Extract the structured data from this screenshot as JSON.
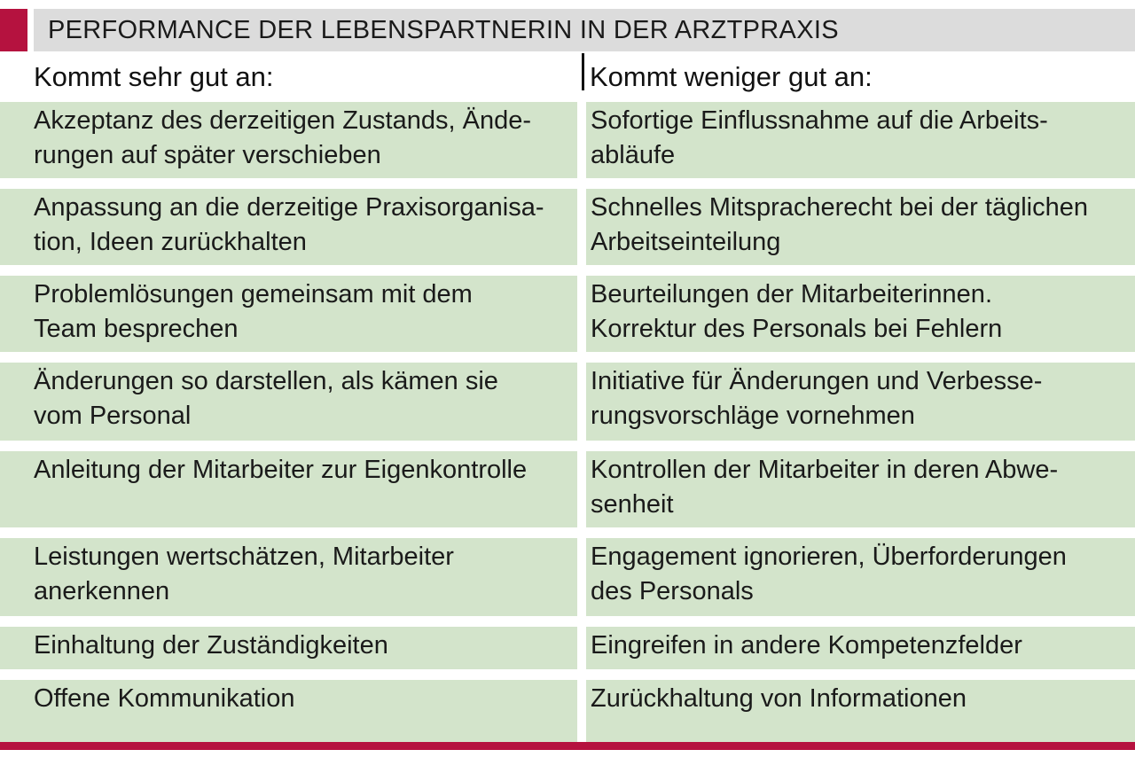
{
  "title": "PERFORMANCE DER LEBENSPARTNERIN IN DER ARZTPRAXIS",
  "columns": {
    "left_header": "Kommt sehr gut an:",
    "right_header": "Kommt weniger gut an:"
  },
  "rows": [
    {
      "left": "Akzeptanz des derzeitigen Zustands, Ände-\nrungen auf später verschieben",
      "right": "Sofortige Einflussnahme auf die Arbeits-\nabläufe"
    },
    {
      "left": "Anpassung an die derzeitige Praxisorganisa-\ntion, Ideen zurückhalten",
      "right": "Schnelles Mitspracherecht bei der täglichen\nArbeitseinteilung"
    },
    {
      "left": "Problemlösungen gemeinsam mit dem\nTeam besprechen",
      "right": "Beurteilungen der Mitarbeiterinnen.\nKorrektur des Personals bei Fehlern"
    },
    {
      "left": "Änderungen so darstellen, als kämen sie\nvom Personal",
      "right": "Initiative für Änderungen und Verbesse-\nrungsvorschläge vornehmen"
    },
    {
      "left": "Anleitung der Mitarbeiter zur Eigenkontrolle",
      "right": "Kontrollen der Mitarbeiter in deren Abwe-\nsenheit"
    },
    {
      "left": "Leistungen wertschätzen, Mitarbeiter\nanerkennen",
      "right": "Engagement ignorieren, Überforderungen\ndes Personals"
    },
    {
      "left": "Einhaltung der Zuständigkeiten",
      "right": "Eingreifen in andere Kompetenzfelder"
    },
    {
      "left": "Offene Kommunikation",
      "right": "Zurückhaltung von Informationen"
    }
  ],
  "colors": {
    "accent": "#b5123f",
    "title_background": "#dcdcdc",
    "cell_background": "#d3e4cb"
  }
}
